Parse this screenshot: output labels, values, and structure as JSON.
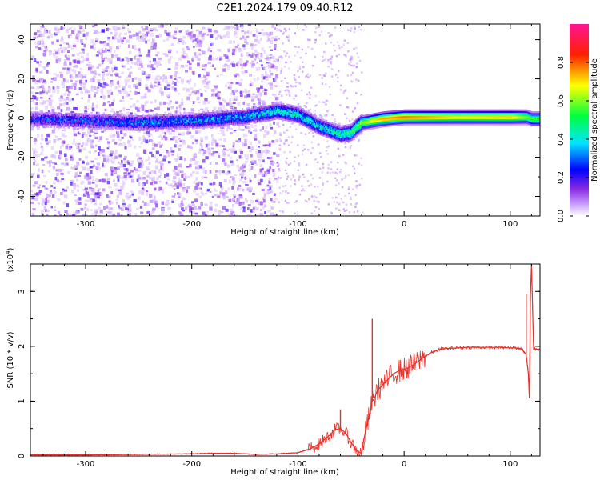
{
  "title": "C2E1.2024.179.09.40.R12",
  "chart_data": [
    {
      "type": "heatmap",
      "xlabel": "Height of straight line (km)",
      "ylabel": "Frequency (Hz)",
      "xlim": [
        -352,
        128
      ],
      "ylim": [
        -50,
        48
      ],
      "xticks": [
        -300,
        -200,
        -100,
        0,
        100
      ],
      "xtick_labels": [
        "-300",
        "-200",
        "-100",
        "0",
        "100"
      ],
      "yticks": [
        -40,
        -20,
        0,
        20,
        40
      ],
      "ytick_labels": [
        "-40",
        "-20",
        "0",
        "20",
        "40"
      ],
      "colorbar": {
        "label": "Normalized spectral amplitude",
        "range": [
          0,
          1
        ],
        "ticks": [
          0.0,
          0.2,
          0.4,
          0.6,
          0.8
        ],
        "tick_labels": [
          "0.0",
          "0.2",
          "0.4",
          "0.6",
          "0.8"
        ],
        "colors": [
          "#ffffff",
          "#9b30ff",
          "#0000ff",
          "#00e5ff",
          "#00ff00",
          "#ffff00",
          "#ff0000",
          "#ff1493"
        ]
      },
      "ridge": {
        "x": [
          -352,
          -300,
          -250,
          -200,
          -150,
          -120,
          -100,
          -80,
          -60,
          -50,
          -45,
          -40,
          -30,
          -20,
          0,
          50,
          100,
          115,
          120,
          128
        ],
        "frequency": [
          0,
          -1,
          -2,
          -1,
          1,
          4,
          2,
          -4,
          -8,
          -7,
          -4,
          -2,
          -1,
          0,
          1,
          1,
          1,
          1,
          0,
          0
        ],
        "amplitude": [
          0.22,
          0.25,
          0.28,
          0.3,
          0.32,
          0.4,
          0.42,
          0.38,
          0.45,
          0.5,
          0.55,
          0.6,
          0.7,
          0.75,
          0.78,
          0.7,
          0.72,
          0.6,
          0.55,
          0.55
        ]
      }
    },
    {
      "type": "line",
      "xlabel": "Height of straight line (km)",
      "ylabel": "SNR (10 * v/v)",
      "y_multiplier": "(x10",
      "y_multiplier_exp": "4",
      "y_multiplier_close": ")",
      "xlim": [
        -352,
        128
      ],
      "ylim": [
        0,
        3.5
      ],
      "xticks": [
        -300,
        -200,
        -100,
        0,
        100
      ],
      "xtick_labels": [
        "-300",
        "-200",
        "-100",
        "0",
        "100"
      ],
      "yticks": [
        0,
        1,
        2,
        3
      ],
      "ytick_labels": [
        "0",
        "1",
        "2",
        "3"
      ],
      "line_color": "#e8312a",
      "x": [
        -352,
        -300,
        -250,
        -200,
        -180,
        -160,
        -140,
        -120,
        -100,
        -90,
        -80,
        -70,
        -65,
        -60,
        -55,
        -50,
        -45,
        -40,
        -38,
        -35,
        -32,
        -30,
        -28,
        -25,
        -20,
        -15,
        -10,
        -5,
        0,
        5,
        10,
        15,
        20,
        25,
        30,
        35,
        40,
        50,
        60,
        70,
        80,
        90,
        100,
        105,
        110,
        113,
        115,
        117,
        118,
        119,
        120,
        122,
        125,
        128
      ],
      "y": [
        0.02,
        0.02,
        0.03,
        0.04,
        0.05,
        0.05,
        0.03,
        0.04,
        0.06,
        0.12,
        0.22,
        0.38,
        0.48,
        0.5,
        0.42,
        0.25,
        0.1,
        0.05,
        0.3,
        0.55,
        0.8,
        1.0,
        1.05,
        1.2,
        1.3,
        1.4,
        1.5,
        1.55,
        1.58,
        1.62,
        1.68,
        1.75,
        1.82,
        1.88,
        1.92,
        1.95,
        1.96,
        1.97,
        1.98,
        1.98,
        1.98,
        1.98,
        1.97,
        1.97,
        1.96,
        1.9,
        1.85,
        1.5,
        1.05,
        2.95,
        3.5,
        1.95,
        1.95,
        1.95
      ],
      "spikes": [
        {
          "x": -30,
          "y": 2.5
        },
        {
          "x": -60,
          "y": 0.85
        },
        {
          "x": 115,
          "y": 2.95
        },
        {
          "x": 120,
          "y": 3.5
        }
      ]
    }
  ]
}
